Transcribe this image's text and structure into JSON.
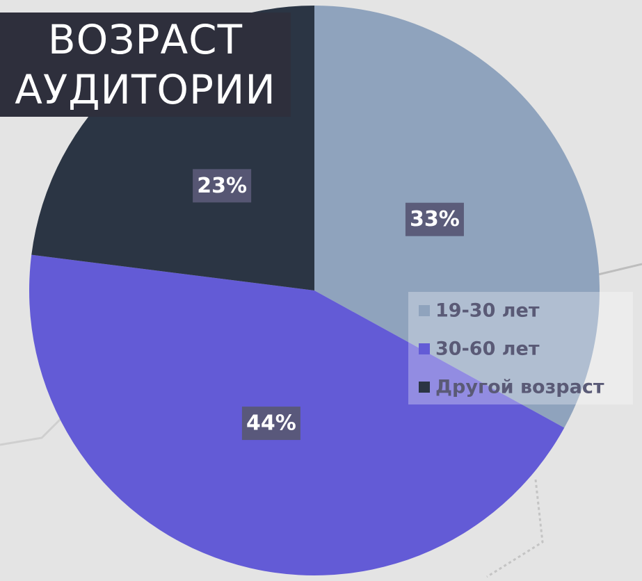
{
  "chart_data": {
    "type": "pie",
    "title": "ВОЗРАСТ АУДИТОРИИ",
    "categories": [
      "19-30 лет",
      "30-60 лет",
      "Другой возраст"
    ],
    "values": [
      33,
      44,
      23
    ],
    "value_labels": [
      "33%",
      "44%",
      "23%"
    ],
    "colors": [
      "#8fa3bd",
      "#635bd6",
      "#2b3544"
    ],
    "legend": "right"
  }
}
